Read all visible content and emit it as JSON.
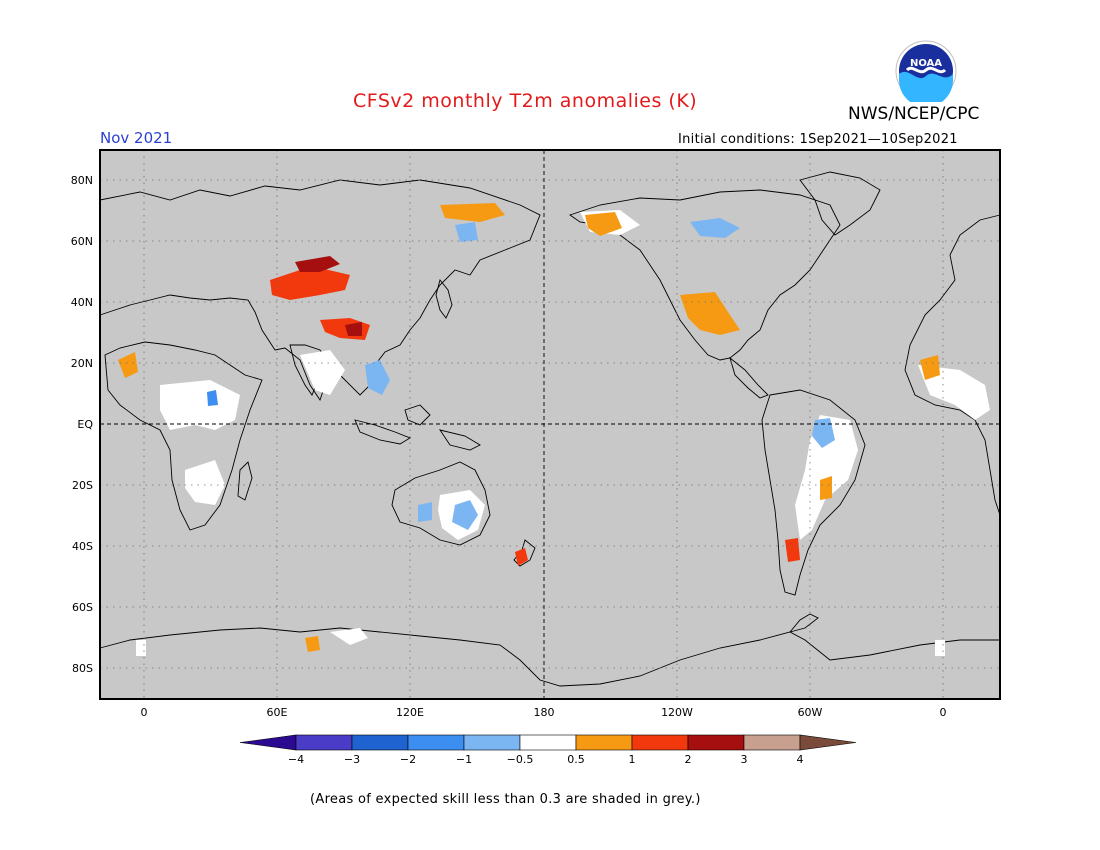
{
  "header": {
    "title": "CFSv2 monthly T2m anomalies (K)",
    "agency": "NWS/NCEP/CPC",
    "month": "Nov 2021",
    "initial_conditions": "Initial conditions: 1Sep2021—10Sep2021",
    "logo_icon": "noaa-logo-icon",
    "logo_text": "NOAA"
  },
  "map": {
    "projection": "cylindrical equidistant, centered on 180",
    "grid": "dotted",
    "land_color": "#c8c8c8",
    "lat_labels": [
      "80N",
      "60N",
      "40N",
      "20N",
      "EQ",
      "20S",
      "40S",
      "60S",
      "80S"
    ],
    "lon_labels": [
      "0",
      "60E",
      "120E",
      "180",
      "120W",
      "60W",
      "0"
    ]
  },
  "colorbar": {
    "tick_labels": [
      "−4",
      "−3",
      "−2",
      "−1",
      "−0.5",
      "0.5",
      "1",
      "2",
      "3",
      "4"
    ],
    "colors": [
      "#2b0a91",
      "#4b3cc8",
      "#1f63d0",
      "#3c8ef0",
      "#7cb6f2",
      "#ffffff",
      "#f59a12",
      "#f2390e",
      "#a50f0f",
      "#c8a090",
      "#7a4a3a"
    ]
  },
  "footnote": "(Areas of expected skill less than 0.3 are shaded in grey.)"
}
